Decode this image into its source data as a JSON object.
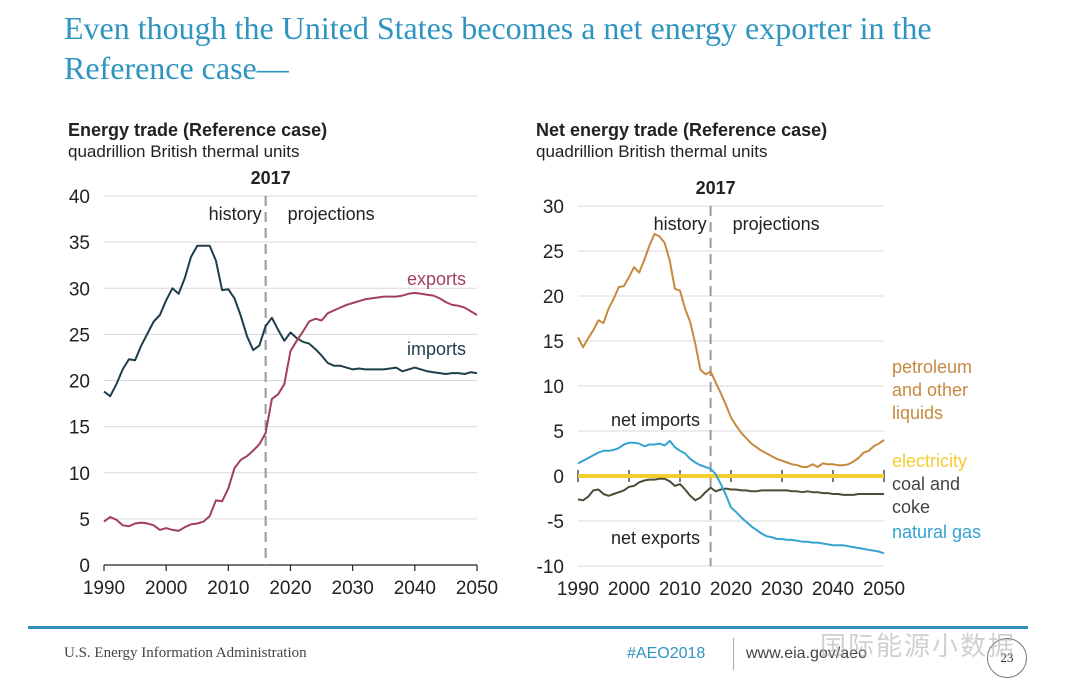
{
  "slide": {
    "title": "Even though the United States becomes a net energy exporter in the Reference case—",
    "footer": {
      "agency": "U.S. Energy Information Administration",
      "hashtag": "#AEO2018",
      "url": "www.eia.gov/aeo",
      "page_number": "23",
      "watermark": "国际能源小数据"
    },
    "colors": {
      "title": "#2e94c0",
      "exports": "#a2405a",
      "imports": "#1d3e4a",
      "petroleum": "#c58a3f",
      "electricity": "#f2cf2e",
      "coal": "#4a4e34",
      "natural_gas": "#35a3cf"
    }
  },
  "chart_data": [
    {
      "type": "line",
      "title": "Energy trade (Reference case)",
      "subtitle": "quadrillion British thermal units",
      "xlabel": "",
      "ylabel": "",
      "xlim": [
        1990,
        2050
      ],
      "ylim": [
        0,
        40
      ],
      "xticks": [
        1990,
        2000,
        2010,
        2020,
        2030,
        2040,
        2050
      ],
      "yticks": [
        0,
        5,
        10,
        15,
        20,
        25,
        30,
        35,
        40
      ],
      "grid": true,
      "divider": {
        "year": 2016,
        "label": "2017",
        "left_label": "history",
        "right_label": "projections"
      },
      "x": [
        1990,
        1991,
        1992,
        1993,
        1994,
        1995,
        1996,
        1997,
        1998,
        1999,
        2000,
        2001,
        2002,
        2003,
        2004,
        2005,
        2006,
        2007,
        2008,
        2009,
        2010,
        2011,
        2012,
        2013,
        2014,
        2015,
        2016,
        2017,
        2018,
        2019,
        2020,
        2021,
        2022,
        2023,
        2024,
        2025,
        2026,
        2027,
        2028,
        2029,
        2030,
        2031,
        2032,
        2033,
        2034,
        2035,
        2036,
        2037,
        2038,
        2039,
        2040,
        2041,
        2042,
        2043,
        2044,
        2045,
        2046,
        2047,
        2048,
        2049,
        2050
      ],
      "series": [
        {
          "name": "imports",
          "label": "imports",
          "values": [
            18.8,
            18.3,
            19.6,
            21.2,
            22.3,
            22.2,
            23.8,
            25.1,
            26.4,
            27.1,
            28.7,
            30.0,
            29.4,
            31.1,
            33.4,
            34.6,
            34.6,
            34.6,
            33.0,
            29.8,
            29.9,
            28.9,
            27.0,
            24.8,
            23.3,
            23.8,
            25.9,
            26.8,
            25.5,
            24.3,
            25.2,
            24.6,
            24.2,
            24.0,
            23.4,
            22.7,
            21.9,
            21.6,
            21.6,
            21.4,
            21.2,
            21.3,
            21.2,
            21.2,
            21.2,
            21.2,
            21.3,
            21.4,
            21.0,
            21.2,
            21.4,
            21.2,
            21.0,
            20.9,
            20.8,
            20.7,
            20.8,
            20.8,
            20.7,
            20.9,
            20.8
          ]
        },
        {
          "name": "exports",
          "label": "exports",
          "values": [
            4.7,
            5.2,
            4.9,
            4.3,
            4.2,
            4.5,
            4.6,
            4.5,
            4.3,
            3.8,
            4.0,
            3.8,
            3.7,
            4.1,
            4.4,
            4.5,
            4.7,
            5.3,
            7.0,
            6.9,
            8.3,
            10.5,
            11.4,
            11.8,
            12.4,
            13.1,
            14.3,
            18.0,
            18.5,
            19.6,
            23.2,
            24.3,
            25.3,
            26.4,
            26.7,
            26.5,
            27.3,
            27.6,
            27.9,
            28.2,
            28.4,
            28.6,
            28.8,
            28.9,
            29.0,
            29.1,
            29.1,
            29.1,
            29.2,
            29.4,
            29.5,
            29.4,
            29.3,
            29.2,
            28.9,
            28.5,
            28.2,
            28.1,
            27.9,
            27.5,
            27.1
          ]
        }
      ]
    },
    {
      "type": "line",
      "title": "Net energy trade (Reference case)",
      "subtitle": "quadrillion British thermal units",
      "xlabel": "",
      "ylabel": "",
      "xlim": [
        1990,
        2050
      ],
      "ylim": [
        -10,
        30
      ],
      "xticks": [
        1990,
        2000,
        2010,
        2020,
        2030,
        2040,
        2050
      ],
      "yticks": [
        -10,
        -5,
        0,
        5,
        10,
        15,
        20,
        25,
        30
      ],
      "grid": true,
      "divider": {
        "year": 2016,
        "label": "2017",
        "left_label": "history",
        "right_label": "projections"
      },
      "annotations": [
        {
          "text": "net imports",
          "position": "upper-left-of-zero"
        },
        {
          "text": "net exports",
          "position": "lower-left-of-zero"
        }
      ],
      "x": [
        1990,
        1991,
        1992,
        1993,
        1994,
        1995,
        1996,
        1997,
        1998,
        1999,
        2000,
        2001,
        2002,
        2003,
        2004,
        2005,
        2006,
        2007,
        2008,
        2009,
        2010,
        2011,
        2012,
        2013,
        2014,
        2015,
        2016,
        2017,
        2018,
        2019,
        2020,
        2021,
        2022,
        2023,
        2024,
        2025,
        2026,
        2027,
        2028,
        2029,
        2030,
        2031,
        2032,
        2033,
        2034,
        2035,
        2036,
        2037,
        2038,
        2039,
        2040,
        2041,
        2042,
        2043,
        2044,
        2045,
        2046,
        2047,
        2048,
        2049,
        2050
      ],
      "series": [
        {
          "name": "petroleum and other liquids",
          "label": "petroleum\nand other\nliquids",
          "values": [
            15.4,
            14.3,
            15.3,
            16.2,
            17.3,
            17.0,
            18.6,
            19.7,
            21.0,
            21.1,
            22.1,
            23.2,
            22.6,
            24.0,
            25.6,
            26.9,
            26.6,
            25.9,
            23.9,
            20.8,
            20.6,
            18.6,
            17.1,
            14.7,
            11.8,
            11.3,
            11.6,
            10.4,
            9.2,
            7.9,
            6.5,
            5.6,
            4.8,
            4.2,
            3.6,
            3.2,
            2.8,
            2.5,
            2.2,
            1.9,
            1.7,
            1.5,
            1.3,
            1.2,
            1.0,
            1.0,
            1.3,
            1.0,
            1.4,
            1.3,
            1.3,
            1.2,
            1.2,
            1.3,
            1.6,
            2.0,
            2.6,
            2.8,
            3.3,
            3.6,
            4.0
          ]
        },
        {
          "name": "electricity",
          "label": "electricity",
          "values": [
            0.0,
            0.0,
            0.0,
            0.0,
            0.0,
            0.0,
            0.0,
            0.0,
            0.0,
            0.0,
            0.0,
            0.0,
            0.0,
            0.0,
            0.0,
            0.0,
            0.0,
            0.0,
            0.0,
            0.0,
            0.0,
            0.0,
            0.0,
            0.0,
            0.0,
            0.0,
            0.0,
            0.0,
            0.0,
            0.0,
            0.0,
            0.0,
            0.0,
            0.0,
            0.0,
            0.0,
            0.0,
            0.0,
            0.0,
            0.0,
            0.0,
            0.0,
            0.0,
            0.0,
            0.0,
            0.0,
            0.0,
            0.0,
            0.0,
            0.0,
            0.0,
            0.0,
            0.0,
            0.0,
            0.0,
            0.0,
            0.0,
            0.0,
            0.0,
            0.0,
            0.0
          ]
        },
        {
          "name": "coal and coke",
          "label": "coal and\ncoke",
          "values": [
            -2.6,
            -2.7,
            -2.3,
            -1.6,
            -1.5,
            -2.0,
            -2.2,
            -2.0,
            -1.8,
            -1.6,
            -1.2,
            -1.1,
            -0.7,
            -0.5,
            -0.4,
            -0.4,
            -0.3,
            -0.3,
            -0.6,
            -1.1,
            -0.9,
            -1.5,
            -2.2,
            -2.7,
            -2.4,
            -1.8,
            -1.3,
            -1.7,
            -1.5,
            -1.4,
            -1.5,
            -1.5,
            -1.6,
            -1.6,
            -1.7,
            -1.7,
            -1.6,
            -1.6,
            -1.6,
            -1.6,
            -1.6,
            -1.6,
            -1.7,
            -1.7,
            -1.8,
            -1.7,
            -1.8,
            -1.8,
            -1.9,
            -1.9,
            -2.0,
            -2.0,
            -2.1,
            -2.1,
            -2.1,
            -2.0,
            -2.0,
            -2.0,
            -2.0,
            -2.0,
            -2.0
          ]
        },
        {
          "name": "natural gas",
          "label": "natural gas",
          "values": [
            1.4,
            1.7,
            2.0,
            2.3,
            2.6,
            2.8,
            2.8,
            2.9,
            3.1,
            3.5,
            3.7,
            3.7,
            3.6,
            3.3,
            3.5,
            3.5,
            3.6,
            3.4,
            3.9,
            3.2,
            2.8,
            2.5,
            1.9,
            1.5,
            1.2,
            1.0,
            0.8,
            0.2,
            -0.9,
            -2.1,
            -3.5,
            -4.0,
            -4.6,
            -5.1,
            -5.6,
            -6.0,
            -6.4,
            -6.7,
            -6.8,
            -7.0,
            -7.0,
            -7.1,
            -7.1,
            -7.2,
            -7.3,
            -7.3,
            -7.4,
            -7.4,
            -7.5,
            -7.6,
            -7.7,
            -7.7,
            -7.7,
            -7.8,
            -7.9,
            -8.0,
            -8.1,
            -8.2,
            -8.3,
            -8.4,
            -8.6
          ]
        }
      ]
    }
  ]
}
